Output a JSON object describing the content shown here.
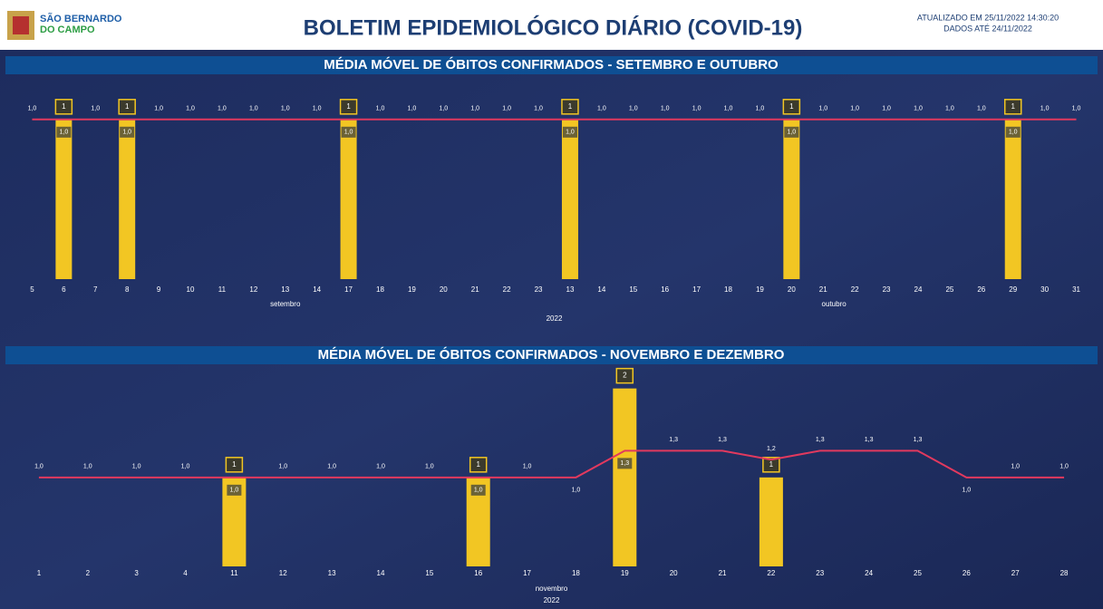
{
  "header": {
    "logo_line1": "SÃO BERNARDO",
    "logo_line2": "DO CAMPO",
    "title": "BOLETIM EPIDEMIOLÓGICO DIÁRIO (COVID-19)",
    "updated": "ATUALIZADO EM 25/11/2022 14:30:20",
    "data_until": "DADOS ATÉ 24/11/2022"
  },
  "chart_data": [
    {
      "type": "bar",
      "title": "MÉDIA MÓVEL DE ÓBITOS CONFIRMADOS - SETEMBRO E OUTUBRO",
      "categories": [
        "5",
        "6",
        "7",
        "8",
        "9",
        "10",
        "11",
        "12",
        "13",
        "14",
        "17",
        "18",
        "19",
        "20",
        "21",
        "22",
        "23",
        "13",
        "14",
        "15",
        "16",
        "17",
        "18",
        "19",
        "20",
        "21",
        "22",
        "23",
        "24",
        "25",
        "26",
        "29",
        "30",
        "31"
      ],
      "month_labels": [
        "setembro",
        "outubro"
      ],
      "year_label": "2022",
      "ylim": [
        0,
        1.05
      ],
      "series": [
        {
          "type": "bar",
          "color": "#f2c623",
          "values": [
            null,
            1,
            null,
            1,
            null,
            null,
            null,
            null,
            null,
            null,
            1,
            null,
            null,
            null,
            null,
            null,
            null,
            1,
            null,
            null,
            null,
            null,
            null,
            null,
            1,
            null,
            null,
            null,
            null,
            null,
            null,
            1,
            null,
            null
          ]
        },
        {
          "type": "line",
          "color": "#e2395e",
          "values": [
            1.0,
            1.0,
            1.0,
            1.0,
            1.0,
            1.0,
            1.0,
            1.0,
            1.0,
            1.0,
            1.0,
            1.0,
            1.0,
            1.0,
            1.0,
            1.0,
            1.0,
            1.0,
            1.0,
            1.0,
            1.0,
            1.0,
            1.0,
            1.0,
            1.0,
            1.0,
            1.0,
            1.0,
            1.0,
            1.0,
            1.0,
            1.0,
            1.0,
            1.0
          ],
          "value_labels": [
            "1,0",
            "1,0",
            "1,0",
            "1,0",
            "1,0",
            "1,0",
            "1,0",
            "1,0",
            "1,0",
            "1,0",
            "1,0",
            "1,0",
            "1,0",
            "1,0",
            "1,0",
            "1,0",
            "1,0",
            "1,0",
            "1,0",
            "1,0",
            "1,0",
            "1,0",
            "1,0",
            "1,0",
            "1,0",
            "1,0",
            "1,0",
            "1,0",
            "1,0",
            "1,0",
            "1,0",
            "1,0",
            "1,0",
            "1,0"
          ]
        }
      ]
    },
    {
      "type": "bar",
      "title": "MÉDIA MÓVEL DE ÓBITOS CONFIRMADOS - NOVEMBRO E DEZEMBRO",
      "categories": [
        "1",
        "2",
        "3",
        "4",
        "11",
        "12",
        "13",
        "14",
        "15",
        "16",
        "17",
        "18",
        "19",
        "20",
        "21",
        "22",
        "23",
        "24",
        "25",
        "26",
        "27",
        "28"
      ],
      "month_labels": [
        "novembro"
      ],
      "year_label": "2022",
      "ylim": [
        0,
        2.2
      ],
      "series": [
        {
          "type": "bar",
          "color": "#f2c623",
          "values": [
            null,
            null,
            null,
            null,
            1,
            null,
            null,
            null,
            null,
            1,
            null,
            null,
            2,
            null,
            null,
            1,
            null,
            null,
            null,
            null,
            null,
            null
          ]
        },
        {
          "type": "line",
          "color": "#e2395e",
          "values": [
            1.0,
            1.0,
            1.0,
            1.0,
            1.0,
            1.0,
            1.0,
            1.0,
            1.0,
            1.0,
            1.0,
            1.0,
            1.3,
            1.3,
            1.3,
            1.2,
            1.3,
            1.3,
            1.3,
            1.0,
            1.0,
            1.0
          ],
          "value_labels": [
            "1,0",
            "1,0",
            "1,0",
            "1,0",
            "1,0",
            "1,0",
            "1,0",
            "1,0",
            "1,0",
            "1,0",
            "1,0",
            "1,0",
            "1,3",
            "1,3",
            "1,3",
            "1,2",
            "1,3",
            "1,3",
            "1,3",
            "1,0",
            "1,0",
            "1,0"
          ]
        }
      ]
    }
  ]
}
